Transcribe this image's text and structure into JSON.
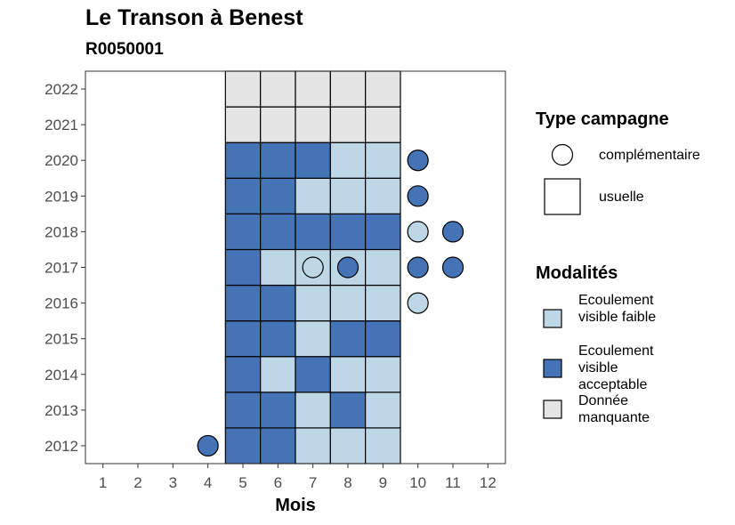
{
  "header": {
    "title": "Le Transon à Benest",
    "subtitle": "R0050001"
  },
  "chart_data": {
    "type": "heatmap",
    "xlabel": "Mois",
    "ylabel": "",
    "x_ticks": [
      1,
      2,
      3,
      4,
      5,
      6,
      7,
      8,
      9,
      10,
      11,
      12
    ],
    "y_ticks": [
      2012,
      2013,
      2014,
      2015,
      2016,
      2017,
      2018,
      2019,
      2020,
      2021,
      2022
    ],
    "xlim": [
      0.5,
      12.5
    ],
    "ylim": [
      2011.5,
      2022.5
    ],
    "grid": false,
    "legend_position": "right",
    "colors": {
      "faible": "#bdd7e7",
      "acceptable": "#4574b6",
      "manquante": "#e5e5e5",
      "usuelle_legend": "#ffffff"
    },
    "modalites": [
      {
        "key": "faible",
        "label": "Ecoulement visible faible"
      },
      {
        "key": "acceptable",
        "label": "Ecoulement visible acceptable"
      },
      {
        "key": "manquante",
        "label": "Donnée manquante"
      }
    ],
    "type_campagne": [
      {
        "key": "complementaire",
        "label": "complémentaire",
        "shape": "circle"
      },
      {
        "key": "usuelle",
        "label": "usuelle",
        "shape": "square"
      }
    ],
    "usuelle_cells": [
      {
        "year": 2012,
        "values": {
          "5": "acceptable",
          "6": "acceptable",
          "7": "faible",
          "8": "faible",
          "9": "faible"
        }
      },
      {
        "year": 2013,
        "values": {
          "5": "acceptable",
          "6": "acceptable",
          "7": "faible",
          "8": "acceptable",
          "9": "faible"
        }
      },
      {
        "year": 2014,
        "values": {
          "5": "acceptable",
          "6": "faible",
          "7": "acceptable",
          "8": "faible",
          "9": "faible"
        }
      },
      {
        "year": 2015,
        "values": {
          "5": "acceptable",
          "6": "acceptable",
          "7": "faible",
          "8": "acceptable",
          "9": "acceptable"
        }
      },
      {
        "year": 2016,
        "values": {
          "5": "acceptable",
          "6": "acceptable",
          "7": "faible",
          "8": "faible",
          "9": "faible"
        }
      },
      {
        "year": 2017,
        "values": {
          "5": "acceptable",
          "6": "faible",
          "7": "faible",
          "8": "faible",
          "9": "faible"
        }
      },
      {
        "year": 2018,
        "values": {
          "5": "acceptable",
          "6": "acceptable",
          "7": "acceptable",
          "8": "acceptable",
          "9": "acceptable"
        }
      },
      {
        "year": 2019,
        "values": {
          "5": "acceptable",
          "6": "acceptable",
          "7": "faible",
          "8": "faible",
          "9": "faible"
        }
      },
      {
        "year": 2020,
        "values": {
          "5": "acceptable",
          "6": "acceptable",
          "7": "acceptable",
          "8": "faible",
          "9": "faible"
        }
      },
      {
        "year": 2021,
        "values": {
          "5": "manquante",
          "6": "manquante",
          "7": "manquante",
          "8": "manquante",
          "9": "manquante"
        }
      },
      {
        "year": 2022,
        "values": {
          "5": "manquante",
          "6": "manquante",
          "7": "manquante",
          "8": "manquante",
          "9": "manquante"
        }
      }
    ],
    "complementaire_points": [
      {
        "year": 2012,
        "month": 4,
        "value": "acceptable"
      },
      {
        "year": 2016,
        "month": 10,
        "value": "faible"
      },
      {
        "year": 2017,
        "month": 7,
        "value": "faible"
      },
      {
        "year": 2017,
        "month": 8,
        "value": "acceptable"
      },
      {
        "year": 2017,
        "month": 10,
        "value": "acceptable"
      },
      {
        "year": 2017,
        "month": 11,
        "value": "acceptable"
      },
      {
        "year": 2018,
        "month": 10,
        "value": "faible"
      },
      {
        "year": 2018,
        "month": 11,
        "value": "acceptable"
      },
      {
        "year": 2019,
        "month": 10,
        "value": "acceptable"
      },
      {
        "year": 2020,
        "month": 10,
        "value": "acceptable"
      }
    ]
  },
  "legend": {
    "type_title": "Type campagne",
    "modalites_title": "Modalités",
    "complementaire_label": "complémentaire",
    "usuelle_label": "usuelle",
    "faible_label": "Ecoulement visible faible",
    "acceptable_label": "Ecoulement visible acceptable",
    "manquante_label": "Donnée manquante"
  }
}
